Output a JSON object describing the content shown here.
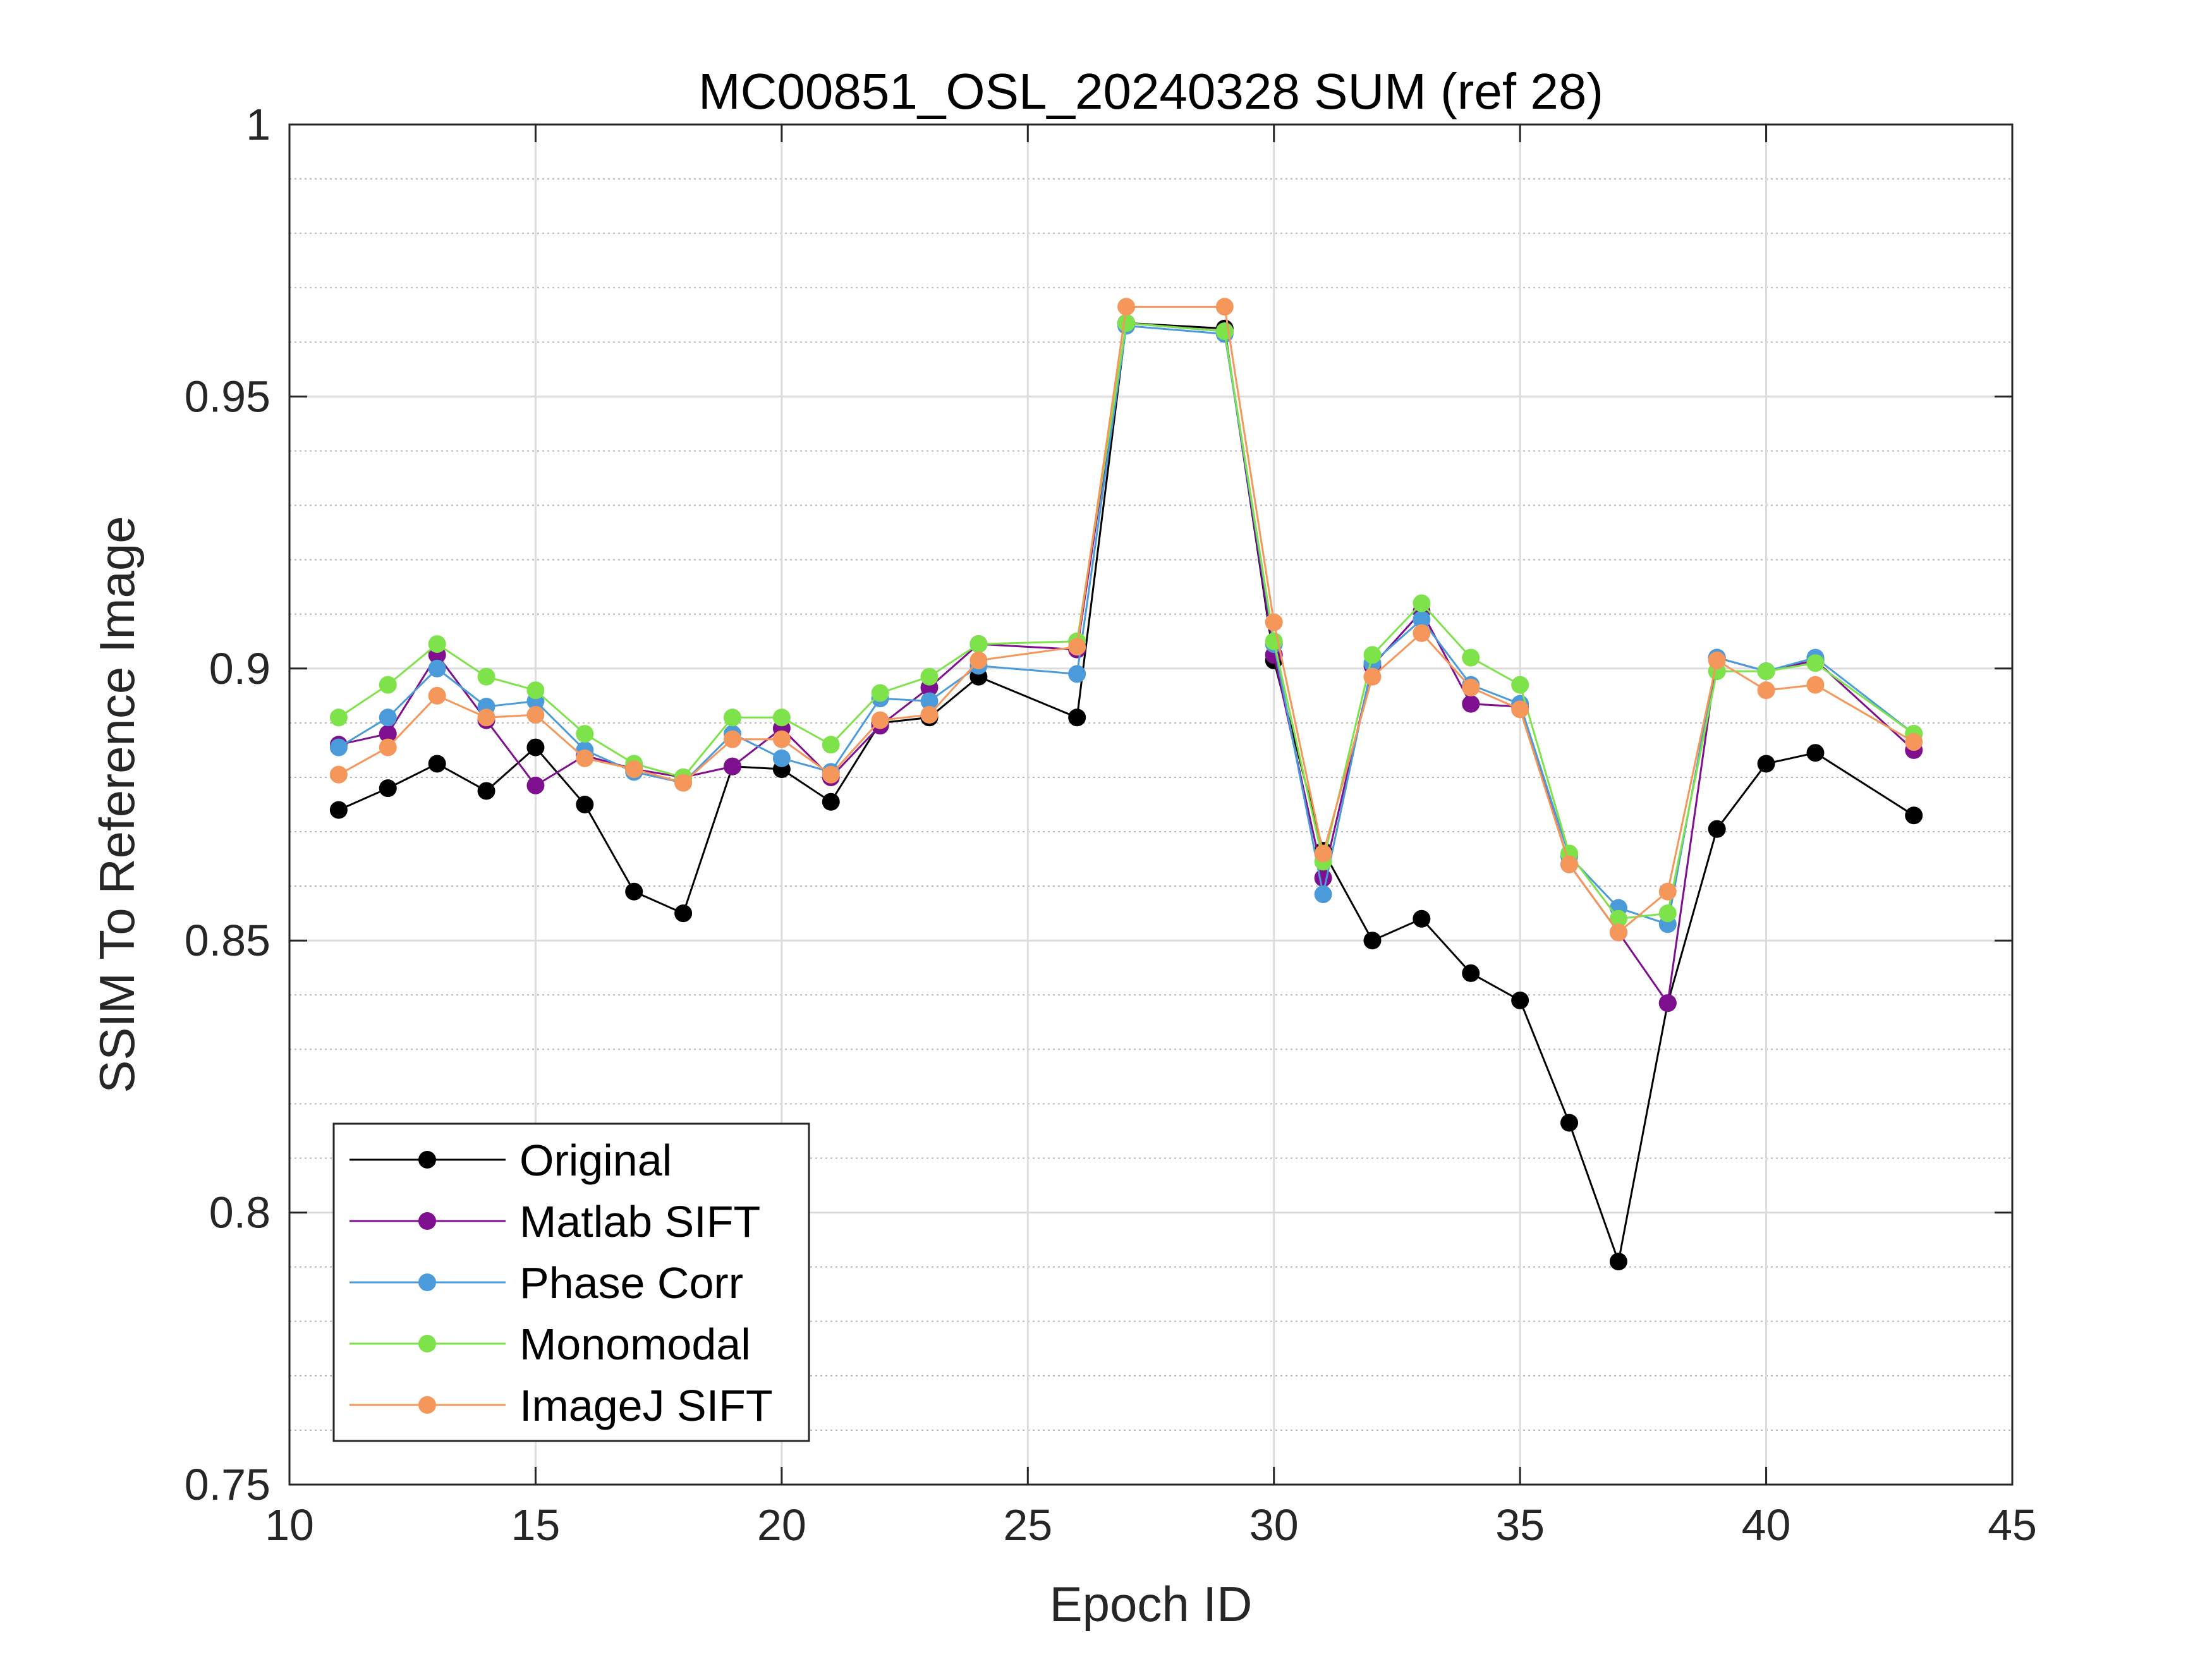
{
  "chart_data": {
    "type": "line",
    "title": "MC00851_OSL_20240328 SUM (ref 28)",
    "xlabel": "Epoch ID",
    "ylabel": "SSIM To Reference Image",
    "xlim": [
      10,
      45
    ],
    "ylim": [
      0.75,
      1
    ],
    "xticks": [
      10,
      15,
      20,
      25,
      30,
      35,
      40,
      45
    ],
    "yticks": [
      0.75,
      0.8,
      0.85,
      0.9,
      0.95,
      1
    ],
    "xtick_labels": [
      "10",
      "15",
      "20",
      "25",
      "30",
      "35",
      "40",
      "45"
    ],
    "ytick_labels": [
      "0.75",
      "0.8",
      "0.85",
      "0.9",
      "0.95",
      "1"
    ],
    "grid": true,
    "minor_grid_y": true,
    "legend_position": "bottom-left",
    "x": [
      11,
      12,
      13,
      14,
      15,
      16,
      17,
      18,
      19,
      20,
      21,
      22,
      23,
      24,
      26,
      27,
      29,
      30,
      31,
      32,
      33,
      34,
      35,
      36,
      37,
      38,
      39,
      40,
      41,
      43
    ],
    "series": [
      {
        "name": "Original",
        "color": "#000000",
        "values": [
          0.874,
          0.878,
          0.8825,
          0.8775,
          0.8855,
          0.875,
          0.859,
          0.855,
          0.882,
          0.8815,
          0.8755,
          0.89,
          0.891,
          0.8985,
          0.891,
          0.9635,
          0.9625,
          0.9015,
          0.8665,
          0.85,
          0.854,
          0.844,
          0.839,
          0.8165,
          0.791,
          0.8385,
          0.8705,
          0.8825,
          0.8845,
          0.873
        ]
      },
      {
        "name": "Matlab SIFT",
        "color": "#7E0F8E",
        "values": [
          0.886,
          0.888,
          0.9025,
          0.8905,
          0.8785,
          0.884,
          0.8815,
          0.88,
          0.882,
          0.889,
          0.88,
          0.8895,
          0.8965,
          0.9045,
          0.9035,
          0.9635,
          0.962,
          0.9025,
          0.8615,
          0.9005,
          0.9105,
          0.8935,
          0.893,
          0.864,
          0.8515,
          0.8385,
          0.902,
          0.8995,
          0.9015,
          0.885
        ]
      },
      {
        "name": "Phase Corr",
        "color": "#4B9BDB",
        "values": [
          0.8855,
          0.891,
          0.9,
          0.893,
          0.894,
          0.885,
          0.881,
          0.879,
          0.888,
          0.8835,
          0.881,
          0.8945,
          0.894,
          0.9005,
          0.899,
          0.963,
          0.9615,
          0.9045,
          0.8585,
          0.901,
          0.909,
          0.897,
          0.8935,
          0.8655,
          0.856,
          0.853,
          0.902,
          0.8995,
          0.902,
          0.888
        ]
      },
      {
        "name": "Monomodal",
        "color": "#7EE24A",
        "values": [
          0.891,
          0.897,
          0.9045,
          0.8985,
          0.896,
          0.888,
          0.8825,
          0.88,
          0.891,
          0.891,
          0.886,
          0.8955,
          0.8985,
          0.9045,
          0.905,
          0.9635,
          0.962,
          0.905,
          0.8645,
          0.9025,
          0.912,
          0.902,
          0.897,
          0.866,
          0.854,
          0.855,
          0.8995,
          0.8995,
          0.901,
          0.888
        ]
      },
      {
        "name": "ImageJ SIFT",
        "color": "#F5965A",
        "values": [
          0.8805,
          0.8855,
          0.895,
          0.891,
          0.8915,
          0.8835,
          0.8815,
          0.879,
          0.887,
          0.887,
          0.8805,
          0.8905,
          0.8915,
          0.9015,
          0.904,
          0.9665,
          0.9665,
          0.9085,
          0.866,
          0.8985,
          0.9065,
          0.8965,
          0.8925,
          0.864,
          0.8515,
          0.859,
          0.9015,
          0.896,
          0.897,
          0.8865
        ]
      }
    ]
  }
}
